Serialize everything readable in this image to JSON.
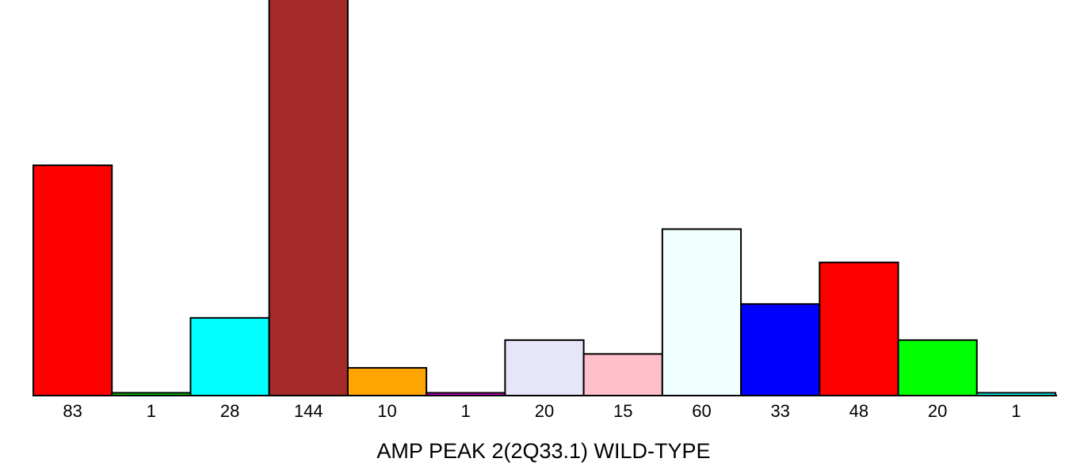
{
  "chart_data": {
    "type": "bar",
    "categories": [
      "83",
      "1",
      "28",
      "144",
      "10",
      "1",
      "20",
      "15",
      "60",
      "33",
      "48",
      "20",
      "1"
    ],
    "values": [
      83,
      1,
      28,
      144,
      10,
      1,
      20,
      15,
      60,
      33,
      48,
      20,
      1
    ],
    "colors": [
      "#ff0000",
      "#00cc00",
      "#00ffff",
      "#a52a2a",
      "#ffa500",
      "#cc00cc",
      "#e6e6fa",
      "#ffc0cb",
      "#f0ffff",
      "#0000ff",
      "#ff0000",
      "#00ff00",
      "#00ffff"
    ],
    "xlabel": "AMP PEAK  2(2Q33.1) WILD-TYPE",
    "ylabel": "",
    "ylim": [
      0,
      144
    ],
    "grid": false,
    "legend": "none"
  }
}
